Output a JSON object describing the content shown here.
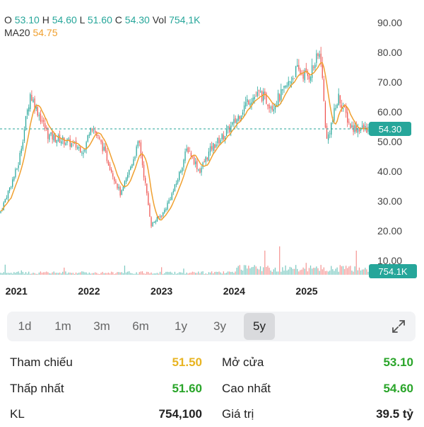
{
  "header": {
    "o_label": "O",
    "o_value": "53.10",
    "h_label": "H",
    "h_value": "54.60",
    "l_label": "L",
    "l_value": "51.60",
    "c_label": "C",
    "c_value": "54.30",
    "vol_label": "Vol",
    "vol_value": "754,1K",
    "ma_label": "MA20",
    "ma_value": "54.75"
  },
  "colors": {
    "up": "#26a69a",
    "down": "#ef5350",
    "ma": "#f0a030",
    "ref": "#e8b422",
    "green_text": "#2aa52a",
    "tag": "#26a69a"
  },
  "chart_data": {
    "type": "line",
    "title": "",
    "x": [
      "2020-10",
      "2021-01",
      "2021-03",
      "2021-06",
      "2021-09",
      "2021-12",
      "2022-01",
      "2022-03",
      "2022-06",
      "2022-09",
      "2022-11",
      "2023-01",
      "2023-03",
      "2023-05",
      "2023-07",
      "2023-09",
      "2023-11",
      "2024-01",
      "2024-03",
      "2024-05",
      "2024-07",
      "2024-09",
      "2024-11",
      "2025-01",
      "2025-03",
      "2025-04",
      "2025-06",
      "2025-08",
      "2025-10"
    ],
    "series": [
      {
        "values": [
          26,
          42,
          66,
          52,
          50,
          47,
          56,
          48,
          32,
          50,
          22,
          26,
          35,
          48,
          40,
          48,
          52,
          57,
          64,
          66,
          62,
          67,
          74,
          72,
          80,
          50,
          65,
          55,
          54.3
        ]
      }
    ],
    "x_tick_labels": [
      "2021",
      "2022",
      "2023",
      "2024",
      "2025"
    ],
    "y_tick_labels": [
      "10.00",
      "20.00",
      "30.00",
      "40.00",
      "50.00",
      "60.00",
      "70.00",
      "80.00",
      "90.00"
    ],
    "ylim": [
      10,
      90
    ],
    "last_price": 54.3,
    "last_price_label": "54.30",
    "volume_label": "754.1K",
    "grid": false
  },
  "timeframes": [
    "1d",
    "1m",
    "3m",
    "6m",
    "1y",
    "3y",
    "5y"
  ],
  "active_timeframe": "5y",
  "stats": {
    "ref_label": "Tham chiếu",
    "ref_value": "51.50",
    "open_label": "Mở cửa",
    "open_value": "53.10",
    "low_label": "Thấp nhất",
    "low_value": "51.60",
    "high_label": "Cao nhất",
    "high_value": "54.60",
    "kl_label": "KL",
    "kl_value": "754,100",
    "value_label": "Giá trị",
    "value_value": "39.5 tỷ"
  },
  "icons": {
    "expand": "expand-icon"
  }
}
